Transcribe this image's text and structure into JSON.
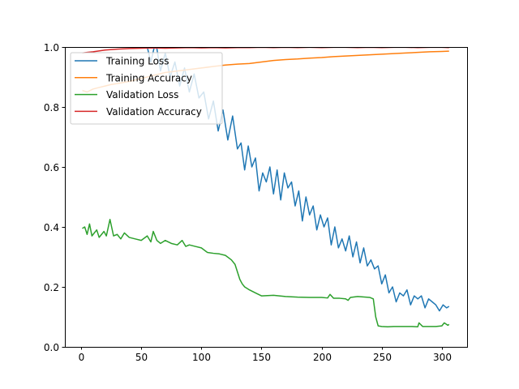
{
  "chart_data": {
    "type": "line",
    "title": "",
    "xlabel": "",
    "ylabel": "",
    "xlim": [
      -13.5,
      321
    ],
    "ylim": [
      0.0,
      1.0
    ],
    "grid": false,
    "legend_position": "top-left",
    "xticks": [
      0,
      50,
      100,
      150,
      200,
      250,
      300
    ],
    "xtick_labels": [
      "0",
      "50",
      "100",
      "150",
      "200",
      "250",
      "300"
    ],
    "yticks": [
      0.0,
      0.2,
      0.4,
      0.6,
      0.8,
      1.0
    ],
    "ytick_labels": [
      "0.0",
      "0.2",
      "0.4",
      "0.6",
      "0.8",
      "1.0"
    ],
    "series": [
      {
        "name": "Training Loss",
        "color": "#1f77b4",
        "x": [
          55,
          58,
          62,
          66,
          70,
          74,
          78,
          82,
          86,
          90,
          94,
          98,
          102,
          106,
          110,
          114,
          118,
          122,
          126,
          130,
          133,
          136,
          139,
          142,
          145,
          148,
          151,
          154,
          157,
          160,
          163,
          166,
          169,
          172,
          175,
          178,
          181,
          184,
          187,
          190,
          193,
          196,
          199,
          202,
          205,
          208,
          211,
          214,
          217,
          220,
          223,
          226,
          229,
          232,
          235,
          238,
          241,
          244,
          247,
          250,
          253,
          256,
          259,
          262,
          265,
          268,
          271,
          274,
          277,
          280,
          283,
          286,
          289,
          292,
          295,
          298,
          301,
          304,
          306
        ],
        "y": [
          1.0,
          0.95,
          1.02,
          0.92,
          0.98,
          0.9,
          0.95,
          0.87,
          0.93,
          0.85,
          0.91,
          0.83,
          0.85,
          0.76,
          0.82,
          0.72,
          0.79,
          0.69,
          0.77,
          0.66,
          0.68,
          0.59,
          0.67,
          0.6,
          0.63,
          0.52,
          0.58,
          0.55,
          0.6,
          0.51,
          0.59,
          0.49,
          0.58,
          0.53,
          0.55,
          0.47,
          0.52,
          0.42,
          0.5,
          0.44,
          0.47,
          0.39,
          0.44,
          0.4,
          0.43,
          0.34,
          0.4,
          0.33,
          0.36,
          0.32,
          0.37,
          0.3,
          0.35,
          0.28,
          0.33,
          0.27,
          0.29,
          0.26,
          0.27,
          0.21,
          0.24,
          0.18,
          0.2,
          0.15,
          0.18,
          0.17,
          0.19,
          0.14,
          0.17,
          0.16,
          0.17,
          0.13,
          0.16,
          0.15,
          0.14,
          0.12,
          0.14,
          0.13,
          0.135
        ]
      },
      {
        "name": "Training Accuracy",
        "color": "#ff7f0e",
        "x": [
          1,
          5,
          10,
          15,
          20,
          25,
          30,
          40,
          50,
          60,
          70,
          80,
          90,
          100,
          110,
          120,
          130,
          140,
          150,
          160,
          170,
          180,
          190,
          200,
          210,
          220,
          230,
          240,
          250,
          260,
          270,
          280,
          290,
          300,
          306
        ],
        "y": [
          0.855,
          0.85,
          0.86,
          0.865,
          0.87,
          0.875,
          0.878,
          0.885,
          0.895,
          0.905,
          0.915,
          0.92,
          0.925,
          0.93,
          0.935,
          0.94,
          0.943,
          0.945,
          0.95,
          0.955,
          0.958,
          0.96,
          0.963,
          0.965,
          0.968,
          0.97,
          0.972,
          0.974,
          0.976,
          0.978,
          0.98,
          0.982,
          0.984,
          0.985,
          0.986
        ]
      },
      {
        "name": "Validation Loss",
        "color": "#2ca02c",
        "x": [
          1,
          3,
          5,
          7,
          9,
          11,
          13,
          15,
          17,
          19,
          21,
          24,
          27,
          30,
          33,
          36,
          40,
          45,
          50,
          55,
          58,
          60,
          63,
          66,
          70,
          75,
          80,
          84,
          87,
          90,
          95,
          100,
          105,
          110,
          115,
          120,
          125,
          128,
          130,
          132,
          134,
          136,
          140,
          145,
          150,
          160,
          170,
          180,
          190,
          200,
          205,
          207,
          210,
          215,
          220,
          222,
          224,
          230,
          240,
          243,
          245,
          247,
          250,
          255,
          260,
          265,
          270,
          275,
          280,
          281,
          284,
          290,
          295,
          300,
          302,
          305,
          306
        ],
        "y": [
          0.395,
          0.4,
          0.375,
          0.41,
          0.37,
          0.38,
          0.39,
          0.365,
          0.375,
          0.385,
          0.37,
          0.425,
          0.37,
          0.375,
          0.36,
          0.38,
          0.365,
          0.36,
          0.355,
          0.37,
          0.35,
          0.385,
          0.355,
          0.345,
          0.355,
          0.345,
          0.34,
          0.355,
          0.335,
          0.34,
          0.335,
          0.33,
          0.315,
          0.312,
          0.31,
          0.305,
          0.29,
          0.275,
          0.25,
          0.225,
          0.21,
          0.2,
          0.19,
          0.18,
          0.17,
          0.172,
          0.168,
          0.166,
          0.165,
          0.165,
          0.163,
          0.175,
          0.162,
          0.162,
          0.16,
          0.155,
          0.165,
          0.168,
          0.165,
          0.16,
          0.1,
          0.07,
          0.068,
          0.067,
          0.068,
          0.068,
          0.068,
          0.068,
          0.067,
          0.08,
          0.068,
          0.068,
          0.068,
          0.07,
          0.08,
          0.072,
          0.075
        ]
      },
      {
        "name": "Validation Accuracy",
        "color": "#d62728",
        "x": [
          1,
          5,
          10,
          20,
          30,
          40,
          50,
          60,
          70,
          80,
          90,
          100,
          110,
          120,
          130,
          140,
          150,
          160,
          170,
          180,
          190,
          200,
          210,
          220,
          230,
          240,
          250,
          260,
          270,
          280,
          290,
          300,
          306
        ],
        "y": [
          0.98,
          0.982,
          0.984,
          0.99,
          0.993,
          0.995,
          0.996,
          0.997,
          0.996,
          0.997,
          0.998,
          0.997,
          0.998,
          0.997,
          0.998,
          0.998,
          0.999,
          0.998,
          0.999,
          0.998,
          0.999,
          0.998,
          0.999,
          0.999,
          0.998,
          0.999,
          0.998,
          0.999,
          0.999,
          0.998,
          0.999,
          0.999,
          0.998
        ]
      }
    ]
  }
}
